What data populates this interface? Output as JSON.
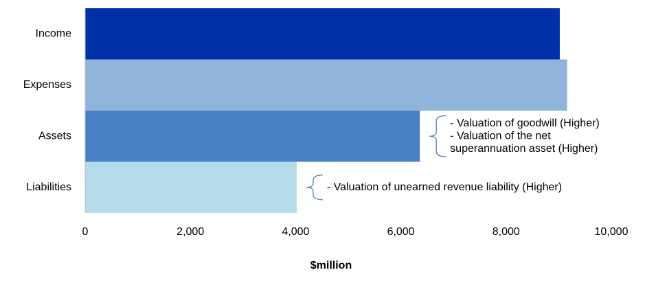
{
  "chart_data": {
    "type": "bar",
    "orientation": "horizontal",
    "categories": [
      "Income",
      "Expenses",
      "Assets",
      "Liabilities"
    ],
    "values": [
      9020,
      9160,
      6360,
      4020
    ],
    "colors": [
      "#0030A8",
      "#90B4DA",
      "#4A80C4",
      "#B6DCEC"
    ],
    "xlabel": "$million",
    "xlim": [
      0,
      10000
    ],
    "xticks": [
      "0",
      "2,000",
      "4,000",
      "6,000",
      "8,000",
      "10,000"
    ],
    "grid": false,
    "annotations": [
      {
        "category": "Assets",
        "lines": [
          "- Valuation of goodwill (Higher)",
          "- Valuation of the net",
          "superannuation asset (Higher)"
        ]
      },
      {
        "category": "Liabilities",
        "lines": [
          "- Valuation of unearned revenue liability (Higher)"
        ]
      }
    ],
    "bracket_color": "#4A80C4"
  }
}
